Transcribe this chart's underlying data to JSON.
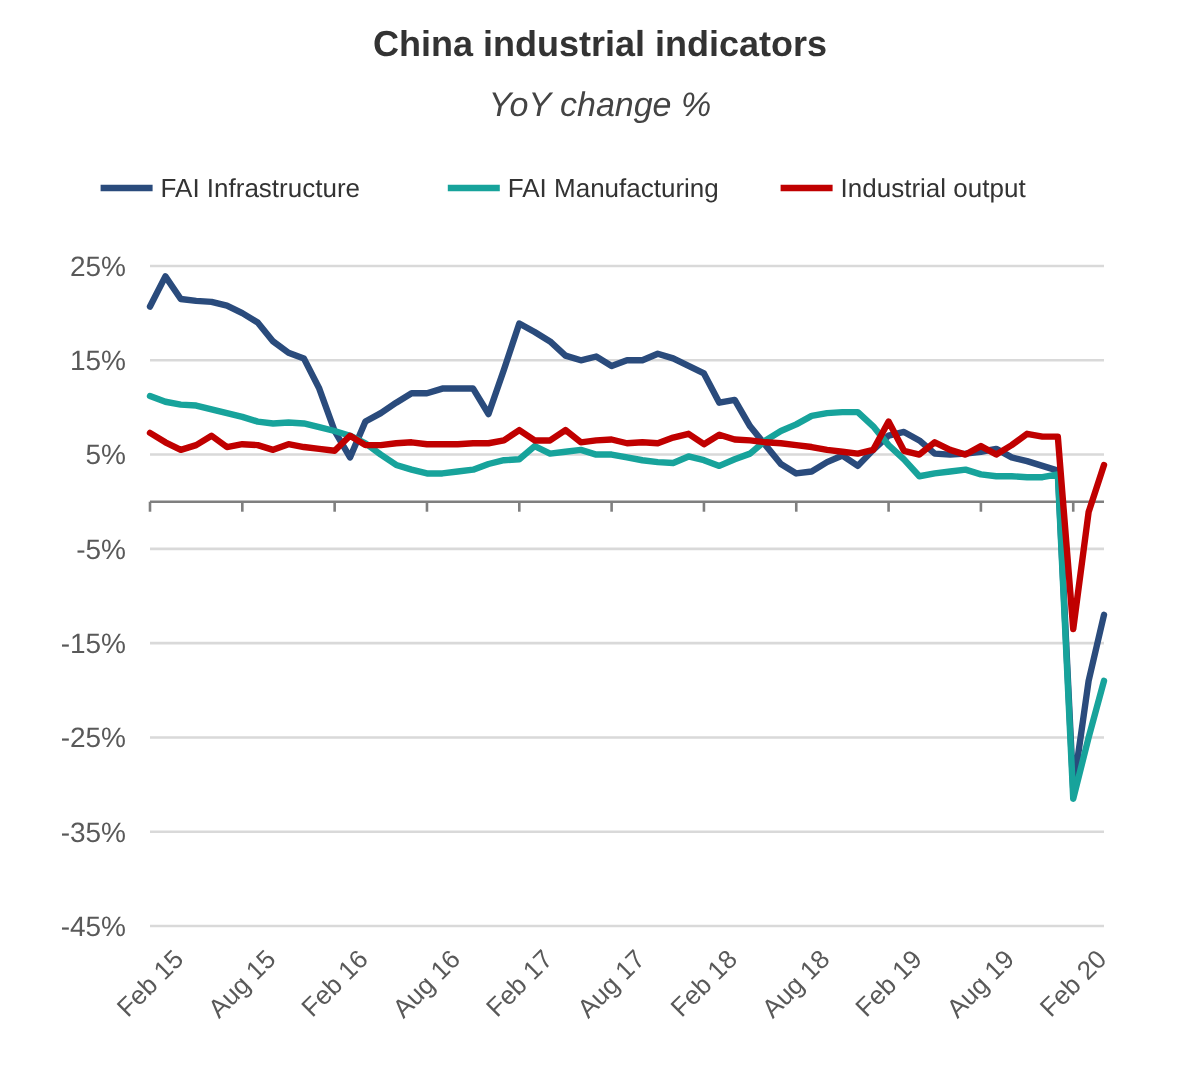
{
  "chart_data": {
    "type": "line",
    "title": "China industrial indicators",
    "subtitle": "YoY change %",
    "categories": [
      "Feb 15",
      null,
      null,
      null,
      null,
      null,
      "Aug 15",
      null,
      null,
      null,
      null,
      null,
      "Feb 16",
      null,
      null,
      null,
      null,
      null,
      "Aug 16",
      null,
      null,
      null,
      null,
      null,
      "Feb 17",
      null,
      null,
      null,
      null,
      null,
      "Aug 17",
      null,
      null,
      null,
      null,
      null,
      "Feb 18",
      null,
      null,
      null,
      null,
      null,
      "Aug 18",
      null,
      null,
      null,
      null,
      null,
      "Feb 19",
      null,
      null,
      null,
      null,
      null,
      "Aug 19",
      null,
      null,
      null,
      null,
      null,
      "Feb 20",
      null,
      null
    ],
    "series": [
      {
        "name": "FAI Infrastructure",
        "color": "#2a4b7c",
        "values": [
          20.7,
          23.9,
          21.5,
          21.3,
          21.2,
          20.8,
          20,
          19,
          17,
          15.8,
          15.2,
          12,
          7.5,
          4.7,
          8.5,
          9.4,
          10.5,
          11.5,
          11.5,
          12,
          12,
          12,
          9.3,
          14,
          18.9,
          18,
          17,
          15.5,
          15,
          15.4,
          14.4,
          15,
          15,
          15.7,
          15.2,
          14.4,
          13.6,
          10.5,
          10.8,
          8,
          6,
          4,
          3,
          3.2,
          4.2,
          4.9,
          3.8,
          5.5,
          7,
          7.4,
          6.5,
          5.1,
          5,
          5.1,
          5.3,
          5.6,
          4.7,
          4.3,
          3.8,
          3.3,
          -30.5,
          -19,
          -12
        ]
      },
      {
        "name": "FAI Manufacturing",
        "color": "#17a39b",
        "values": [
          11.2,
          10.6,
          10.3,
          10.2,
          9.8,
          9.4,
          9,
          8.5,
          8.3,
          8.4,
          8.3,
          7.9,
          7.5,
          7,
          6.2,
          5,
          3.9,
          3.4,
          3,
          3,
          3.2,
          3.4,
          4,
          4.4,
          4.5,
          5.9,
          5.1,
          5.3,
          5.5,
          5,
          5,
          4.7,
          4.4,
          4.2,
          4.1,
          4.8,
          4.4,
          3.8,
          4.5,
          5.1,
          6.5,
          7.5,
          8.2,
          9.1,
          9.4,
          9.5,
          9.5,
          8,
          6,
          4.5,
          2.7,
          3,
          3.2,
          3.4,
          2.9,
          2.7,
          2.7,
          2.6,
          2.6,
          2.9,
          -31.5,
          -25,
          -19
        ]
      },
      {
        "name": "Industrial output",
        "color": "#c00000",
        "values": [
          7.3,
          6.3,
          5.5,
          6,
          7,
          5.8,
          6.1,
          6,
          5.5,
          6.1,
          5.8,
          5.6,
          5.4,
          7,
          6,
          6,
          6.2,
          6.3,
          6.1,
          6.1,
          6.1,
          6.2,
          6.2,
          6.5,
          7.6,
          6.5,
          6.5,
          7.6,
          6.3,
          6.5,
          6.6,
          6.2,
          6.3,
          6.2,
          6.8,
          7.2,
          6.1,
          7.1,
          6.6,
          6.5,
          6.3,
          6.2,
          6,
          5.8,
          5.5,
          5.3,
          5.1,
          5.5,
          8.5,
          5.4,
          5,
          6.3,
          5.5,
          5,
          5.9,
          5,
          6,
          7.2,
          6.9,
          6.9,
          -13.5,
          -1.1,
          3.9
        ]
      }
    ],
    "ylim": [
      -45,
      25
    ],
    "yticks": [
      {
        "value": -45,
        "label": "-45%"
      },
      {
        "value": -35,
        "label": "-35%"
      },
      {
        "value": -25,
        "label": "-25%"
      },
      {
        "value": -15,
        "label": "-15%"
      },
      {
        "value": -5,
        "label": "-5%"
      },
      {
        "value": 5,
        "label": "5%"
      },
      {
        "value": 15,
        "label": "15%"
      },
      {
        "value": 25,
        "label": "25%"
      }
    ],
    "grid": "y",
    "legend": "top",
    "marker": "none",
    "line_style": "solid"
  }
}
